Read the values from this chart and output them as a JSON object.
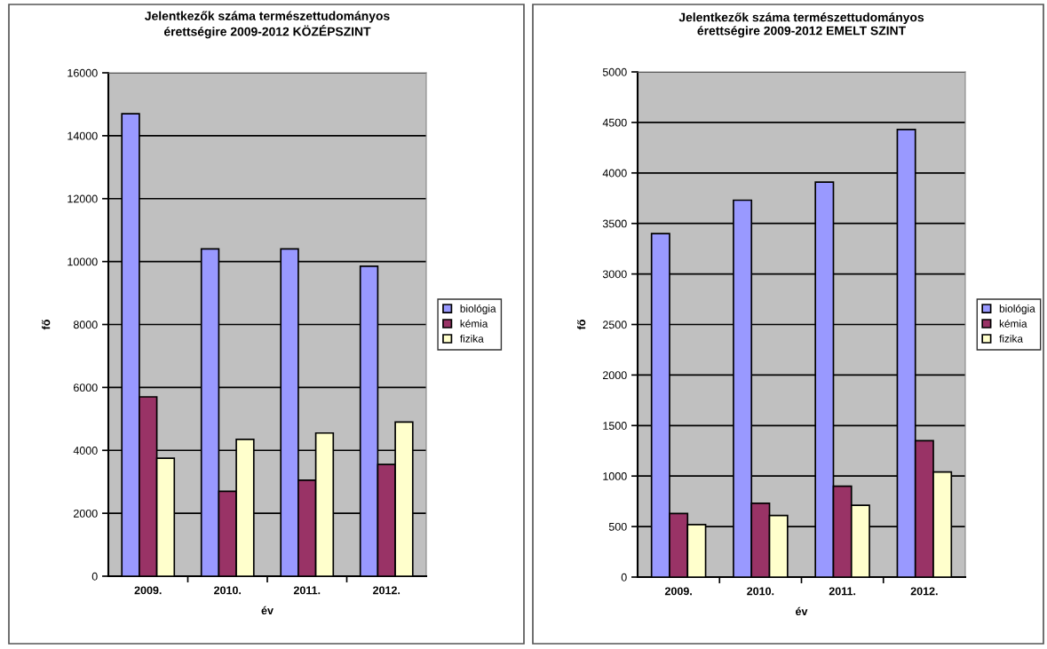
{
  "chart_data": [
    {
      "type": "bar",
      "title": "Jelentkezők száma természettudományos\nérettségire 2009-2012 KÖZÉPSZINT",
      "xlabel": "év",
      "ylabel": "fő",
      "categories": [
        "2009.",
        "2010.",
        "2011.",
        "2012."
      ],
      "series": [
        {
          "name": "biológia",
          "color": "#9999ff",
          "values": [
            14700,
            10400,
            10400,
            9850
          ]
        },
        {
          "name": "kémia",
          "color": "#993366",
          "values": [
            5700,
            2700,
            3050,
            3550
          ]
        },
        {
          "name": "fizika",
          "color": "#ffffcc",
          "values": [
            3750,
            4350,
            4550,
            4900
          ]
        }
      ],
      "ylim": [
        0,
        16000
      ],
      "yticks": [
        0,
        2000,
        4000,
        6000,
        8000,
        10000,
        12000,
        14000,
        16000
      ],
      "grid": "y",
      "legend": "right"
    },
    {
      "type": "bar",
      "title": "Jelentkezők száma természettudományos\nérettségire 2009-2012 EMELT SZINT",
      "xlabel": "év",
      "ylabel": "fő",
      "categories": [
        "2009.",
        "2010.",
        "2011.",
        "2012."
      ],
      "series": [
        {
          "name": "biológia",
          "color": "#9999ff",
          "values": [
            3400,
            3730,
            3910,
            4430
          ]
        },
        {
          "name": "kémia",
          "color": "#993366",
          "values": [
            630,
            730,
            900,
            1350
          ]
        },
        {
          "name": "fizika",
          "color": "#ffffcc",
          "values": [
            520,
            610,
            710,
            1040
          ]
        }
      ],
      "ylim": [
        0,
        5000
      ],
      "yticks": [
        0,
        500,
        1000,
        1500,
        2000,
        2500,
        3000,
        3500,
        4000,
        4500,
        5000
      ],
      "grid": "y",
      "legend": "right"
    }
  ]
}
